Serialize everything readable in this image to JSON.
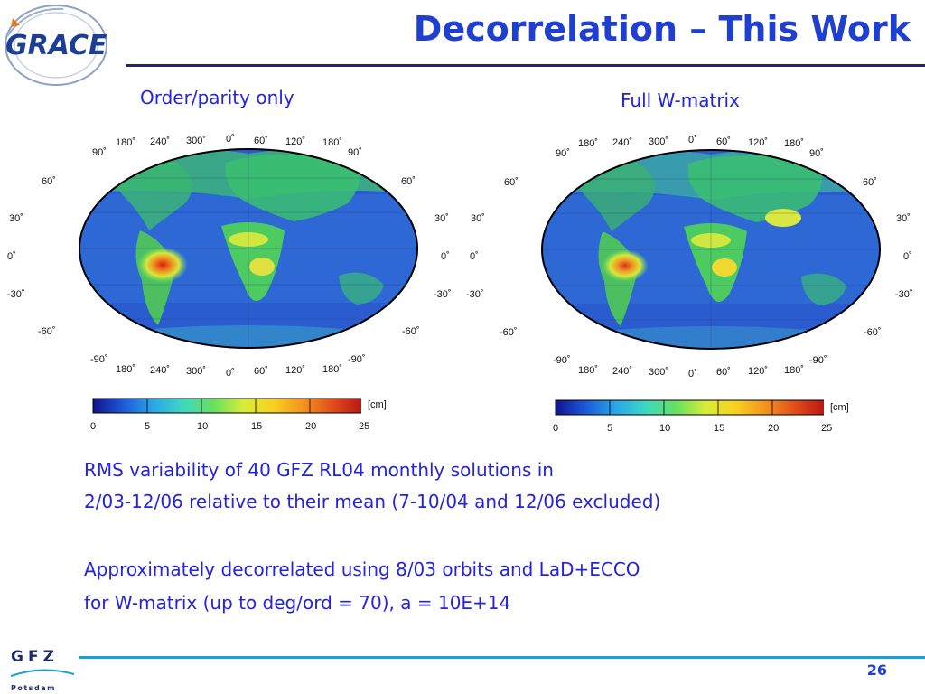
{
  "header": {
    "title": "Decorrelation – This Work",
    "logo_text": "GRACE"
  },
  "maps": [
    {
      "caption": "Order/parity only",
      "top_lon_labels": [
        "180˚",
        "240˚",
        "300˚",
        "0˚",
        "60˚",
        "120˚",
        "180˚"
      ],
      "bottom_lon_labels": [
        "180˚",
        "240˚",
        "300˚",
        "0˚",
        "60˚",
        "120˚",
        "180˚"
      ],
      "left_lat_labels": [
        "90˚",
        "60˚",
        "30˚",
        "0˚",
        "-30˚",
        "-60˚",
        "-90˚"
      ],
      "right_lat_labels": [
        "90˚",
        "60˚",
        "30˚",
        "0˚",
        "-30˚",
        "-60˚",
        "-90˚"
      ]
    },
    {
      "caption": "Full W-matrix",
      "top_lon_labels": [
        "180˚",
        "240˚",
        "300˚",
        "0˚",
        "60˚",
        "120˚",
        "180˚"
      ],
      "bottom_lon_labels": [
        "180˚",
        "240˚",
        "300˚",
        "0˚",
        "60˚",
        "120˚",
        "180˚"
      ],
      "left_lat_labels": [
        "90˚",
        "60˚",
        "30˚",
        "0˚",
        "-30˚",
        "-60˚",
        "-90˚"
      ],
      "right_lat_labels": [
        "90˚",
        "60˚",
        "30˚",
        "0˚",
        "-30˚",
        "-60˚",
        "-90˚"
      ]
    }
  ],
  "colorbar": {
    "unit": "[cm]",
    "ticks": [
      "0",
      "5",
      "10",
      "15",
      "20",
      "25"
    ],
    "colors": [
      "#12128c",
      "#1c5ad8",
      "#2aa6e8",
      "#3ed8c0",
      "#66e060",
      "#d8ec3a",
      "#f8d020",
      "#f49020",
      "#e04a18",
      "#b41414"
    ]
  },
  "body": {
    "line1": "RMS variability of 40 GFZ RL04 monthly solutions in",
    "line2": "2/03-12/06 relative to their mean (7-10/04 and 12/06 excluded)",
    "line3": "Approximately decorrelated using 8/03 orbits and LaD+ECCO",
    "line4": "for W-matrix (up to deg/ord = 70), a = 10E+14"
  },
  "footer": {
    "logo_text": "GFZ",
    "logo_subtext": "Potsdam",
    "page_number": "26"
  }
}
